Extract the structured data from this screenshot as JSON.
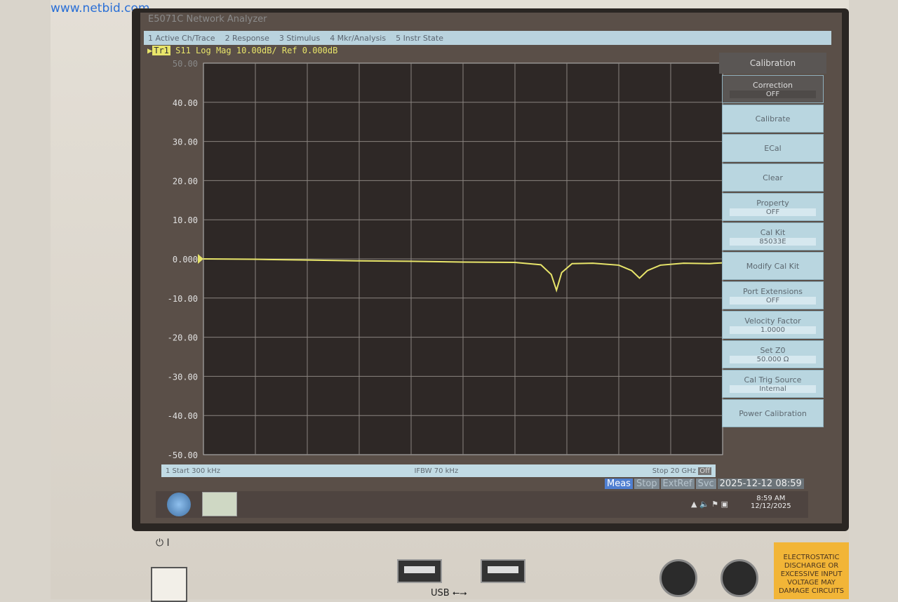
{
  "watermark": "www.netbid.com",
  "window_title": "E5071C Network Analyzer",
  "menu": [
    "1 Active Ch/Trace",
    "2 Response",
    "3 Stimulus",
    "4 Mkr/Analysis",
    "5 Instr State"
  ],
  "trace_header": {
    "badge": "Tr1",
    "text": "S11 Log Mag 10.00dB/ Ref 0.000dB"
  },
  "softkeys": {
    "title": "Calibration",
    "items": [
      {
        "label": "Correction",
        "value": "OFF"
      },
      {
        "label": "Calibrate"
      },
      {
        "label": "ECal"
      },
      {
        "label": "Clear"
      },
      {
        "label": "Property",
        "value": "OFF"
      },
      {
        "label": "Cal Kit",
        "value": "85033E"
      },
      {
        "label": "Modify Cal Kit"
      },
      {
        "label": "Port Extensions",
        "value": "OFF"
      },
      {
        "label": "Velocity Factor",
        "value": "1.0000"
      },
      {
        "label": "Set Z0",
        "value": "50.000 Ω"
      },
      {
        "label": "Cal Trig Source",
        "value": "Internal"
      },
      {
        "label": "Power Calibration"
      }
    ]
  },
  "status": {
    "start": "1  Start 300 kHz",
    "ifbw": "IFBW 70 kHz",
    "stop": "Stop 20 GHz",
    "off": "Off"
  },
  "statusline": {
    "meas": "Meas",
    "stop": "Stop",
    "extref": "ExtRef",
    "svc": "Svc",
    "datetime": "2025-12-12 08:59"
  },
  "taskbar": {
    "time": "8:59 AM",
    "date": "12/12/2025"
  },
  "panel": {
    "usb": "USB",
    "power": "⏻  I",
    "esd": "ELECTROSTATIC DISCHARGE OR EXCESSIVE INPUT VOLTAGE MAY DAMAGE CIRCUITS"
  },
  "chart_data": {
    "type": "line",
    "title": "S11 Log Mag 10.00dB/ Ref 0.000dB",
    "xlabel": "",
    "ylabel": "",
    "xlim_ghz": [
      0.0003,
      20
    ],
    "ylim": [
      -50,
      50
    ],
    "y_ticks": [
      "50.00",
      "40.00",
      "30.00",
      "20.00",
      "10.00",
      "0.000",
      "-10.00",
      "-20.00",
      "-30.00",
      "-40.00",
      "-50.00"
    ],
    "grid": true,
    "trace_color": "#e8e56a",
    "series": [
      {
        "x": [
          0.0003,
          2,
          4,
          6,
          8,
          10,
          12,
          13,
          13.4,
          13.6,
          13.8,
          14.2,
          15,
          16,
          16.5,
          16.8,
          17.1,
          17.6,
          18.5,
          19.5,
          20
        ],
        "y": [
          0,
          -0.1,
          -0.3,
          -0.5,
          -0.6,
          -0.8,
          -0.9,
          -1.5,
          -4,
          -8,
          -3.5,
          -1.2,
          -1.1,
          -1.6,
          -3,
          -4.9,
          -3,
          -1.6,
          -1.1,
          -1.2,
          -1.0
        ]
      }
    ]
  }
}
